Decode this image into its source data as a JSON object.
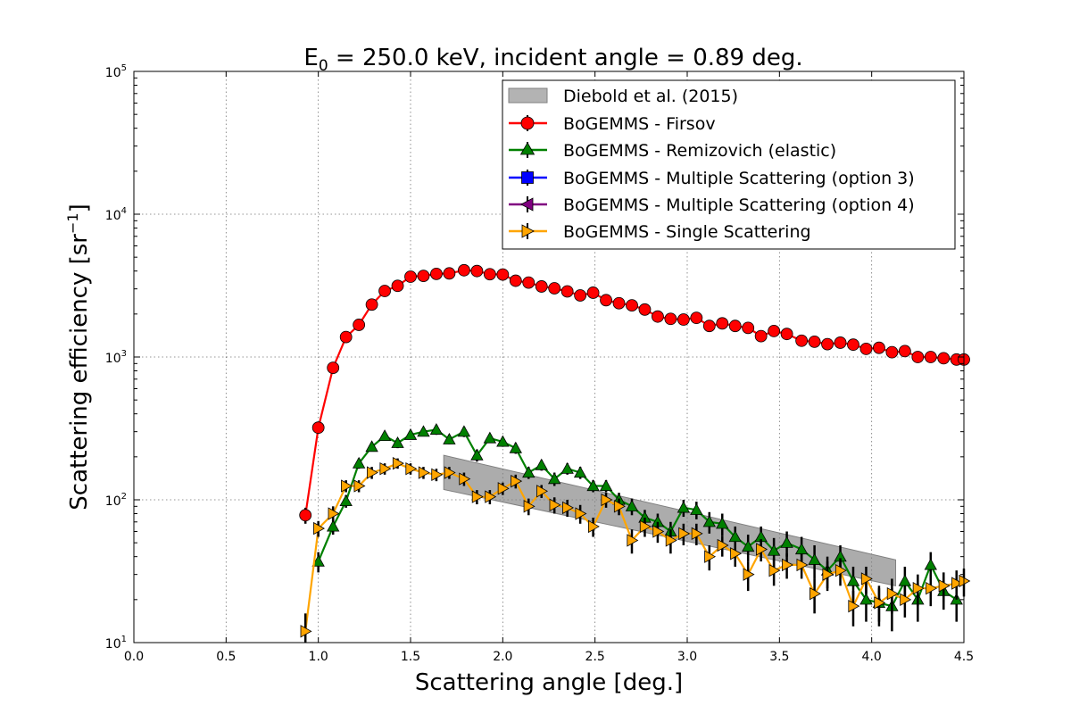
{
  "chart_data": {
    "type": "scatter",
    "title_main": "E",
    "title_sub": "0",
    "title_rest": " = 250.0 keV, incident angle = 0.89 deg.",
    "xlabel": "Scattering angle [deg.]",
    "ylabel_main": "Scattering efficiency [sr",
    "ylabel_sup": "−1",
    "ylabel_end": "]",
    "xlim": [
      0.0,
      4.5
    ],
    "ylim": [
      10,
      100000
    ],
    "yscale": "log",
    "grid": true,
    "legend_position": "top-right",
    "x_ticks": [
      "0.0",
      "0.5",
      "1.0",
      "1.5",
      "2.0",
      "2.5",
      "3.0",
      "3.5",
      "4.0",
      "4.5"
    ],
    "y_ticks": [
      {
        "base": "10",
        "exp": "1"
      },
      {
        "base": "10",
        "exp": "2"
      },
      {
        "base": "10",
        "exp": "3"
      },
      {
        "base": "10",
        "exp": "4"
      },
      {
        "base": "10",
        "exp": "5"
      }
    ],
    "band": {
      "name": "Diebold et al. (2015)",
      "color": "#808080",
      "x": [
        1.68,
        4.13
      ],
      "lower": [
        118,
        25
      ],
      "upper": [
        205,
        38
      ]
    },
    "series": [
      {
        "name": "BoGEMMS - Firsov",
        "color": "#ff0000",
        "marker": "circle",
        "x": [
          0.93,
          1.0,
          1.08,
          1.15,
          1.22,
          1.29,
          1.36,
          1.43,
          1.5,
          1.57,
          1.64,
          1.71,
          1.79,
          1.86,
          1.93,
          2.0,
          2.07,
          2.14,
          2.21,
          2.28,
          2.35,
          2.42,
          2.49,
          2.56,
          2.63,
          2.7,
          2.77,
          2.84,
          2.91,
          2.98,
          3.05,
          3.12,
          3.19,
          3.26,
          3.33,
          3.4,
          3.47,
          3.54,
          3.62,
          3.69,
          3.76,
          3.83,
          3.9,
          3.97,
          4.04,
          4.11,
          4.18,
          4.25,
          4.32,
          4.39,
          4.46,
          4.5
        ],
        "y": [
          78,
          320,
          840,
          1380,
          1680,
          2330,
          2900,
          3150,
          3650,
          3700,
          3820,
          3850,
          4050,
          4000,
          3800,
          3780,
          3420,
          3320,
          3120,
          3030,
          2880,
          2700,
          2820,
          2500,
          2380,
          2300,
          2150,
          1920,
          1850,
          1830,
          1880,
          1650,
          1720,
          1650,
          1600,
          1400,
          1520,
          1450,
          1300,
          1280,
          1230,
          1260,
          1220,
          1140,
          1160,
          1080,
          1100,
          1000,
          1000,
          980,
          960,
          960
        ],
        "yerr": [
          10,
          20,
          30,
          30,
          40,
          50,
          50,
          50,
          60,
          60,
          60,
          60,
          60,
          60,
          60,
          60,
          50,
          50,
          50,
          50,
          50,
          50,
          50,
          40,
          40,
          40,
          40,
          40,
          40,
          40,
          40,
          30,
          30,
          30,
          30,
          30,
          30,
          30,
          30,
          30,
          30,
          30,
          30,
          30,
          30,
          30,
          30,
          30,
          30,
          30,
          30,
          30
        ]
      },
      {
        "name": "BoGEMMS - Remizovich (elastic)",
        "color": "#008000",
        "marker": "triangle-up",
        "x": [
          1.0,
          1.08,
          1.15,
          1.22,
          1.29,
          1.36,
          1.43,
          1.5,
          1.57,
          1.64,
          1.71,
          1.79,
          1.86,
          1.93,
          2.0,
          2.07,
          2.14,
          2.21,
          2.28,
          2.35,
          2.42,
          2.49,
          2.56,
          2.63,
          2.7,
          2.77,
          2.84,
          2.91,
          2.98,
          3.05,
          3.12,
          3.19,
          3.26,
          3.33,
          3.4,
          3.47,
          3.54,
          3.62,
          3.69,
          3.76,
          3.83,
          3.9,
          3.97,
          4.04,
          4.11,
          4.18,
          4.25,
          4.32,
          4.39,
          4.46
        ],
        "y": [
          37,
          65,
          98,
          180,
          235,
          280,
          250,
          285,
          300,
          310,
          265,
          300,
          205,
          270,
          255,
          230,
          155,
          175,
          140,
          165,
          155,
          125,
          125,
          100,
          90,
          75,
          70,
          60,
          88,
          85,
          70,
          68,
          55,
          47,
          55,
          44,
          50,
          45,
          38,
          32,
          40,
          27,
          20,
          19,
          18,
          27,
          20,
          35,
          23,
          20
        ],
        "yerr": [
          6,
          8,
          10,
          15,
          15,
          20,
          20,
          20,
          20,
          25,
          20,
          25,
          20,
          20,
          20,
          20,
          15,
          15,
          15,
          15,
          15,
          12,
          12,
          12,
          12,
          10,
          10,
          10,
          12,
          12,
          12,
          12,
          10,
          10,
          10,
          10,
          10,
          10,
          10,
          8,
          8,
          7,
          6,
          6,
          6,
          7,
          6,
          8,
          6,
          6
        ]
      },
      {
        "name": "BoGEMMS - Multiple Scattering (option 3)",
        "color": "#0000ff",
        "marker": "square",
        "x": [],
        "y": [],
        "yerr": []
      },
      {
        "name": "BoGEMMS - Multiple Scattering (option 4)",
        "color": "#800080",
        "marker": "triangle-left",
        "x": [],
        "y": [],
        "yerr": []
      },
      {
        "name": "BoGEMMS - Single Scattering",
        "color": "#ffa500",
        "marker": "triangle-right",
        "x": [
          0.93,
          1.0,
          1.08,
          1.15,
          1.22,
          1.29,
          1.36,
          1.43,
          1.5,
          1.57,
          1.64,
          1.71,
          1.79,
          1.86,
          1.93,
          2.0,
          2.07,
          2.14,
          2.21,
          2.28,
          2.35,
          2.42,
          2.49,
          2.56,
          2.63,
          2.7,
          2.77,
          2.84,
          2.91,
          2.98,
          3.05,
          3.12,
          3.19,
          3.26,
          3.33,
          3.4,
          3.47,
          3.54,
          3.62,
          3.69,
          3.76,
          3.83,
          3.9,
          3.97,
          4.04,
          4.11,
          4.18,
          4.25,
          4.32,
          4.39,
          4.46,
          4.5
        ],
        "y": [
          12,
          63,
          80,
          125,
          125,
          155,
          165,
          180,
          165,
          155,
          150,
          155,
          140,
          105,
          105,
          120,
          135,
          90,
          115,
          92,
          88,
          80,
          65,
          100,
          90,
          52,
          65,
          60,
          52,
          58,
          58,
          40,
          48,
          42,
          30,
          45,
          32,
          35,
          35,
          22,
          30,
          32,
          18,
          28,
          19,
          22,
          20,
          24,
          24,
          25,
          26,
          27
        ],
        "yerr": [
          4,
          8,
          10,
          12,
          12,
          15,
          15,
          15,
          15,
          15,
          15,
          15,
          15,
          12,
          12,
          12,
          15,
          12,
          12,
          12,
          12,
          12,
          10,
          12,
          12,
          10,
          10,
          10,
          10,
          10,
          10,
          8,
          8,
          8,
          7,
          8,
          7,
          7,
          7,
          6,
          7,
          7,
          5,
          6,
          5,
          6,
          5,
          6,
          6,
          6,
          6,
          6
        ]
      }
    ]
  }
}
